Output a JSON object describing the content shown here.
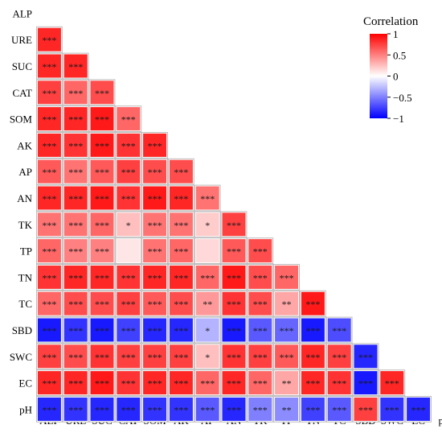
{
  "chart_data": {
    "type": "heatmap",
    "variables": [
      "ALP",
      "URE",
      "SUC",
      "CAT",
      "SOM",
      "AK",
      "AP",
      "AN",
      "TK",
      "TP",
      "TN",
      "TC",
      "SBD",
      "SWC",
      "EC",
      "pH"
    ],
    "legend": {
      "title": "Correlation",
      "ticks": [
        "1",
        "0.5",
        "0",
        "−0.5",
        "−1"
      ],
      "tick_values": [
        1,
        0.5,
        0,
        -0.5,
        -1
      ],
      "colors": {
        "high": "#ff0000",
        "mid": "#ffffff",
        "low": "#0000ff"
      },
      "placement": "top-right"
    },
    "rows": [
      {
        "var": "URE",
        "values": [
          0.85
        ],
        "sig": [
          "***"
        ]
      },
      {
        "var": "SUC",
        "values": [
          0.85,
          0.85
        ],
        "sig": [
          "***",
          "***"
        ]
      },
      {
        "var": "CAT",
        "values": [
          0.75,
          0.6,
          0.7
        ],
        "sig": [
          "***",
          "***",
          "***"
        ]
      },
      {
        "var": "SOM",
        "values": [
          0.85,
          0.85,
          0.9,
          0.6
        ],
        "sig": [
          "***",
          "***",
          "***",
          "***"
        ]
      },
      {
        "var": "AK",
        "values": [
          0.85,
          0.8,
          0.9,
          0.8,
          0.85
        ],
        "sig": [
          "***",
          "***",
          "***",
          "***",
          "***"
        ]
      },
      {
        "var": "AP",
        "values": [
          0.65,
          0.55,
          0.65,
          0.75,
          0.7,
          0.7
        ],
        "sig": [
          "***",
          "***",
          "***",
          "***",
          "***",
          "***"
        ]
      },
      {
        "var": "AN",
        "values": [
          0.85,
          0.85,
          0.9,
          0.8,
          0.9,
          0.85,
          0.55
        ],
        "sig": [
          "***",
          "***",
          "***",
          "***",
          "***",
          "***",
          "***"
        ]
      },
      {
        "var": "TK",
        "values": [
          0.55,
          0.55,
          0.6,
          0.25,
          0.55,
          0.55,
          0.2,
          0.75
        ],
        "sig": [
          "***",
          "***",
          "***",
          "*",
          "***",
          "***",
          "*",
          "***"
        ]
      },
      {
        "var": "TP",
        "values": [
          0.6,
          0.5,
          0.5,
          0.1,
          0.55,
          0.6,
          0.15,
          0.65,
          0.7
        ],
        "sig": [
          "***",
          "***",
          "***",
          "",
          "***",
          "***",
          "",
          "***",
          "***"
        ]
      },
      {
        "var": "TN",
        "values": [
          0.8,
          0.85,
          0.85,
          0.8,
          0.85,
          0.85,
          0.6,
          0.9,
          0.7,
          0.6
        ],
        "sig": [
          "***",
          "***",
          "***",
          "***",
          "***",
          "***",
          "***",
          "***",
          "***",
          "***"
        ]
      },
      {
        "var": "TC",
        "values": [
          0.6,
          0.7,
          0.7,
          0.75,
          0.65,
          0.7,
          0.4,
          0.8,
          0.7,
          0.35,
          0.9
        ],
        "sig": [
          "***",
          "***",
          "***",
          "***",
          "***",
          "***",
          "**",
          "***",
          "***",
          "**",
          "***"
        ]
      },
      {
        "var": "SBD",
        "values": [
          -0.9,
          -0.8,
          -0.9,
          -0.75,
          -0.85,
          -0.85,
          -0.3,
          -0.9,
          -0.65,
          -0.6,
          -0.9,
          -0.7
        ],
        "sig": [
          "***",
          "***",
          "***",
          "***",
          "***",
          "***",
          "*",
          "***",
          "***",
          "***",
          "***",
          "***"
        ]
      },
      {
        "var": "SWC",
        "values": [
          0.75,
          0.7,
          0.8,
          0.75,
          0.75,
          0.75,
          0.25,
          0.8,
          0.75,
          0.65,
          0.85,
          0.75,
          -0.85
        ],
        "sig": [
          "***",
          "***",
          "***",
          "***",
          "***",
          "***",
          "*",
          "***",
          "***",
          "***",
          "***",
          "***",
          "***"
        ]
      },
      {
        "var": "EC",
        "values": [
          0.85,
          0.85,
          0.9,
          0.8,
          0.85,
          0.85,
          0.6,
          0.85,
          0.6,
          0.35,
          0.85,
          0.8,
          -0.9,
          0.85
        ],
        "sig": [
          "***",
          "***",
          "***",
          "***",
          "***",
          "***",
          "***",
          "***",
          "***",
          "**",
          "***",
          "***",
          "***",
          "***"
        ]
      },
      {
        "var": "pH",
        "values": [
          -0.85,
          -0.8,
          -0.85,
          -0.85,
          -0.8,
          -0.8,
          -0.65,
          -0.85,
          -0.5,
          -0.45,
          -0.75,
          -0.65,
          0.75,
          -0.8,
          -0.85
        ],
        "sig": [
          "***",
          "***",
          "***",
          "***",
          "***",
          "***",
          "***",
          "***",
          "***",
          "**",
          "***",
          "***",
          "***",
          "***",
          "***"
        ]
      }
    ]
  }
}
